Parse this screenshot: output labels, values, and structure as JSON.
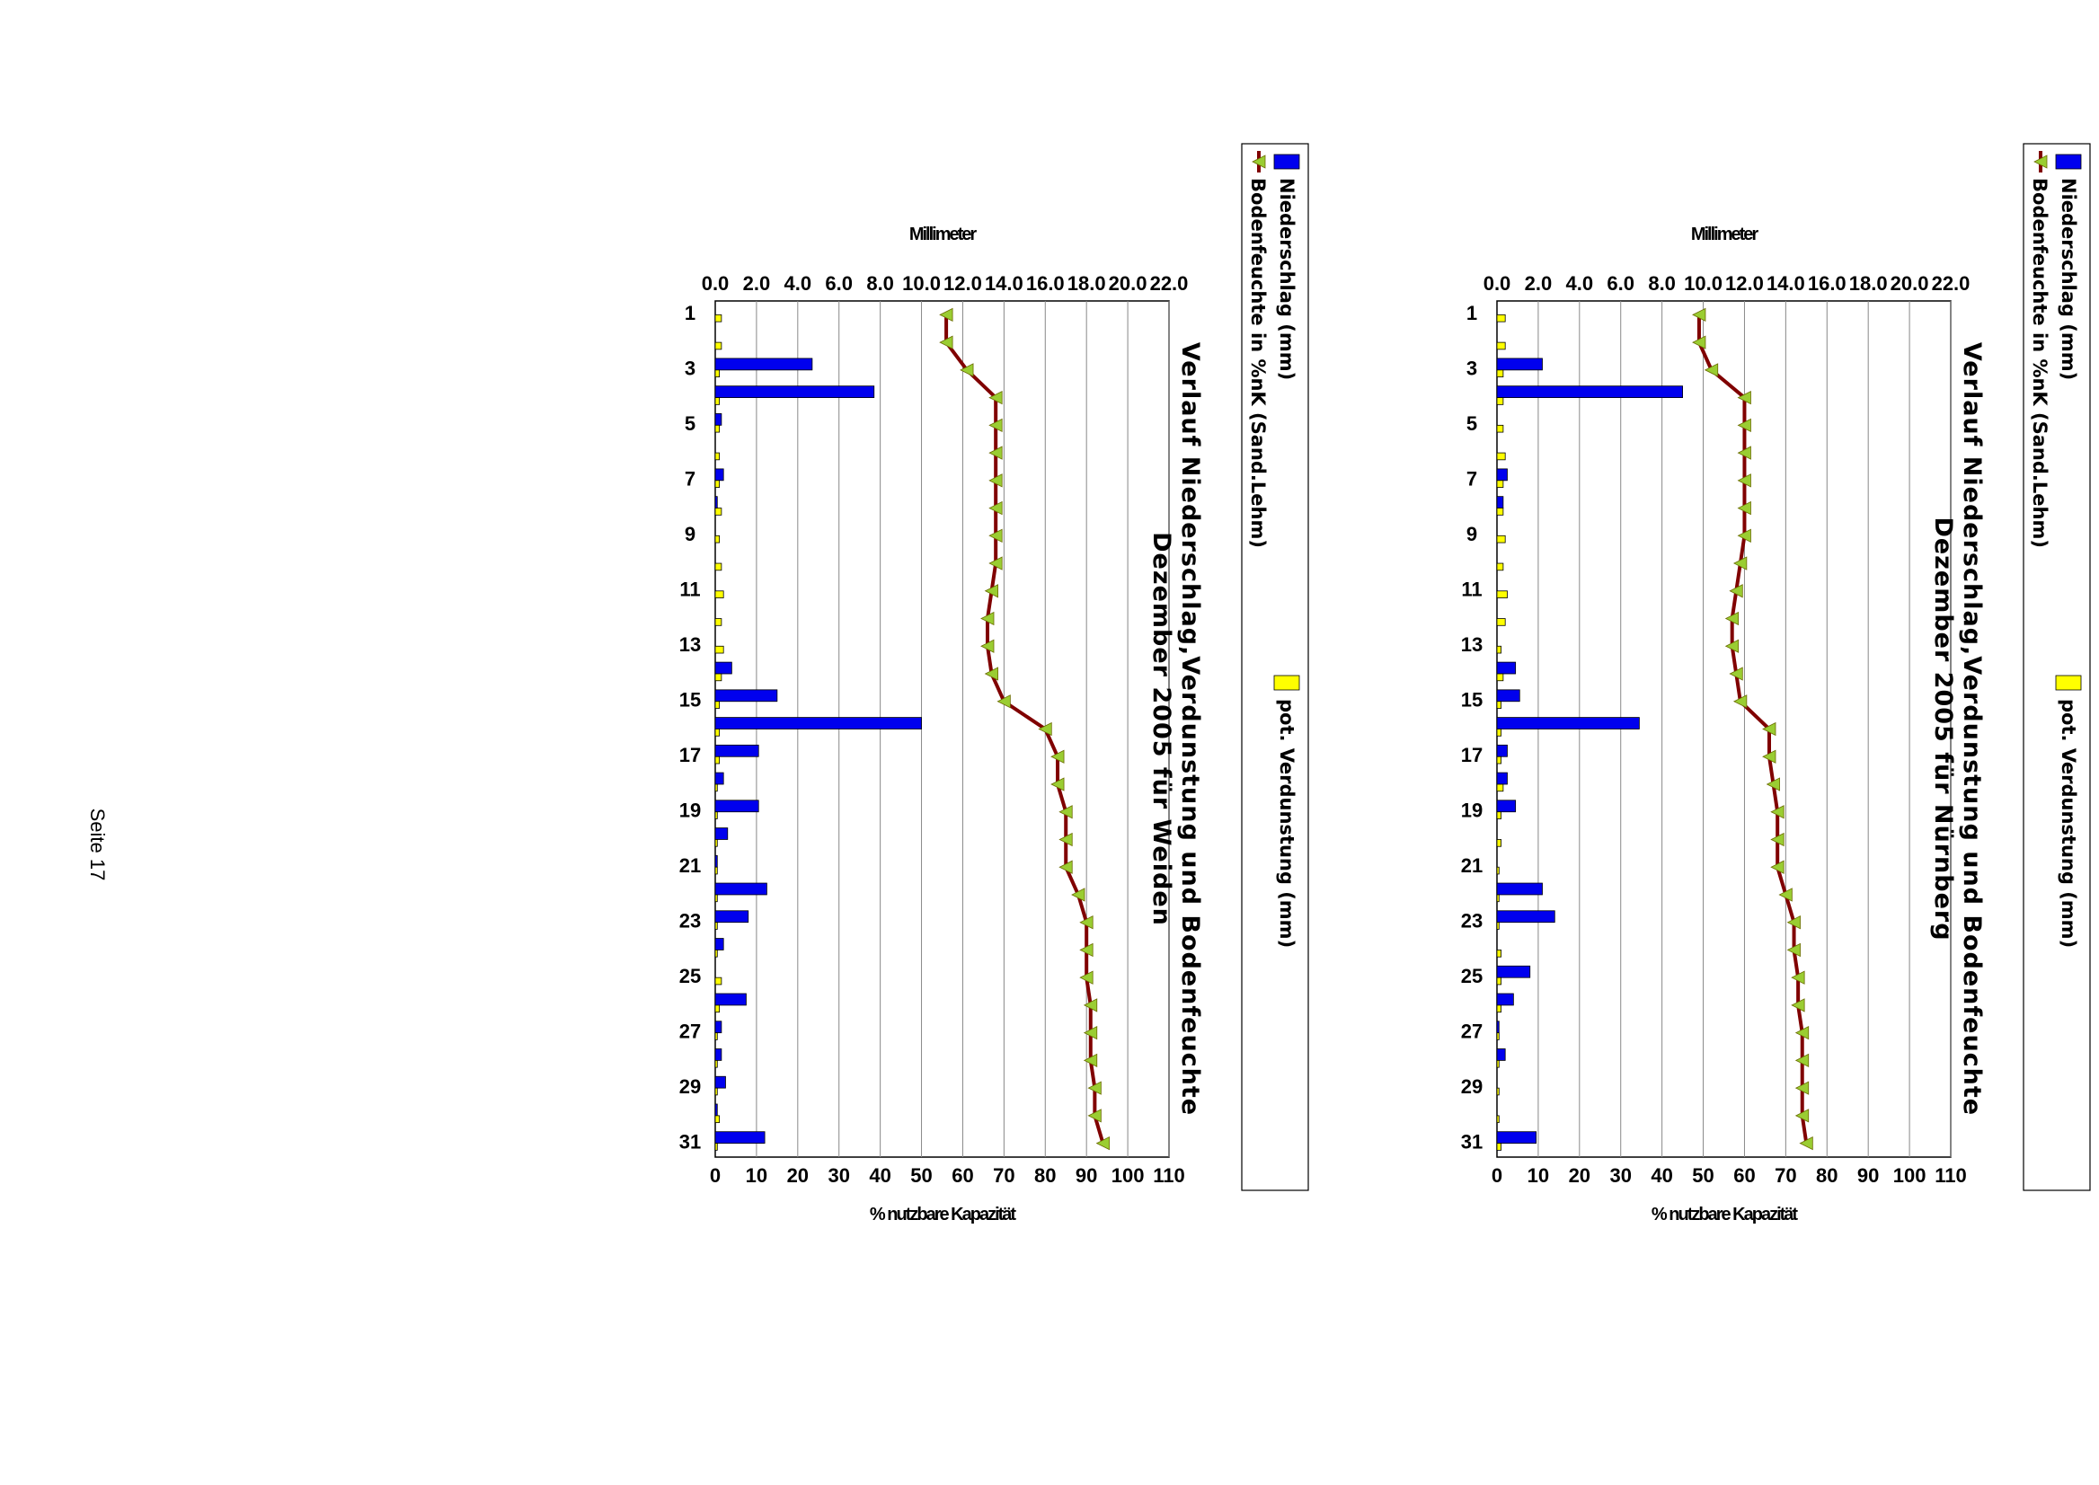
{
  "footer": "Seite 17",
  "chart_data": [
    {
      "type": "bar+line",
      "title": "Verlauf Niederschlag,Verdunstung und Bodenfeuchte",
      "subtitle": "Dezember 2005 für Nürnberg",
      "ylabel_left": "Millimeter",
      "ylabel_right": "% nutzbare Kapazität",
      "ylim_left": [
        0,
        22
      ],
      "ylim_right": [
        0,
        110
      ],
      "yticks_left": [
        "0.0",
        "2.0",
        "4.0",
        "6.0",
        "8.0",
        "10.0",
        "12.0",
        "14.0",
        "16.0",
        "18.0",
        "20.0",
        "22.0"
      ],
      "yticks_right": [
        "0",
        "10",
        "20",
        "30",
        "40",
        "50",
        "60",
        "70",
        "80",
        "90",
        "100",
        "110"
      ],
      "xticks": [
        "1",
        "3",
        "5",
        "7",
        "9",
        "11",
        "13",
        "15",
        "17",
        "19",
        "21",
        "23",
        "25",
        "27",
        "29",
        "31"
      ],
      "x": [
        1,
        2,
        3,
        4,
        5,
        6,
        7,
        8,
        9,
        10,
        11,
        12,
        13,
        14,
        15,
        16,
        17,
        18,
        19,
        20,
        21,
        22,
        23,
        24,
        25,
        26,
        27,
        28,
        29,
        30,
        31
      ],
      "grid": true,
      "legend_position": "bottom",
      "series": [
        {
          "name": "Niederschlag (mm)",
          "type": "bar",
          "color": "#0000ee",
          "values": [
            0,
            0,
            2.2,
            9.0,
            0,
            0,
            0.5,
            0.3,
            0,
            0,
            0,
            0,
            0,
            0.9,
            1.1,
            6.9,
            0.5,
            0.5,
            0.9,
            0,
            0,
            2.2,
            2.8,
            0,
            1.6,
            0.8,
            0.1,
            0.4,
            0,
            0,
            1.9
          ]
        },
        {
          "name": "pot. Verdunstung (mm)",
          "type": "bar",
          "color": "#ffff00",
          "values": [
            0.4,
            0.4,
            0.3,
            0.3,
            0.3,
            0.4,
            0.3,
            0.3,
            0.4,
            0.3,
            0.5,
            0.4,
            0.2,
            0.3,
            0.2,
            0.2,
            0.2,
            0.3,
            0.2,
            0.2,
            0.1,
            0.1,
            0.1,
            0.2,
            0.2,
            0.2,
            0.1,
            0.1,
            0.1,
            0.1,
            0.2
          ]
        },
        {
          "name": "Bodenfeuchte in %nK (Sand.Lehm)",
          "type": "line",
          "color": "#800000",
          "marker_color": "#9acd32",
          "values": [
            49,
            49,
            52,
            60,
            60,
            60,
            60,
            60,
            60,
            59,
            58,
            57,
            57,
            58,
            59,
            66,
            66,
            67,
            68,
            68,
            68,
            70,
            72,
            72,
            73,
            73,
            74,
            74,
            74,
            74,
            75
          ]
        }
      ]
    },
    {
      "type": "bar+line",
      "title": "Verlauf Niederschlag,Verdunstung und Bodenfeuchte",
      "subtitle": "Dezember 2005 für Weiden",
      "ylabel_left": "Millimeter",
      "ylabel_right": "% nutzbare Kapazität",
      "ylim_left": [
        0,
        22
      ],
      "ylim_right": [
        0,
        110
      ],
      "yticks_left": [
        "0.0",
        "2.0",
        "4.0",
        "6.0",
        "8.0",
        "10.0",
        "12.0",
        "14.0",
        "16.0",
        "18.0",
        "20.0",
        "22.0"
      ],
      "yticks_right": [
        "0",
        "10",
        "20",
        "30",
        "40",
        "50",
        "60",
        "70",
        "80",
        "90",
        "100",
        "110"
      ],
      "xticks": [
        "1",
        "3",
        "5",
        "7",
        "9",
        "11",
        "13",
        "15",
        "17",
        "19",
        "21",
        "23",
        "25",
        "27",
        "29",
        "31"
      ],
      "x": [
        1,
        2,
        3,
        4,
        5,
        6,
        7,
        8,
        9,
        10,
        11,
        12,
        13,
        14,
        15,
        16,
        17,
        18,
        19,
        20,
        21,
        22,
        23,
        24,
        25,
        26,
        27,
        28,
        29,
        30,
        31
      ],
      "grid": true,
      "legend_position": "bottom",
      "series": [
        {
          "name": "Niederschlag (mm)",
          "type": "bar",
          "color": "#0000ee",
          "values": [
            0,
            0,
            4.7,
            7.7,
            0.3,
            0,
            0.4,
            0.1,
            0,
            0,
            0,
            0,
            0,
            0.8,
            3.0,
            10.0,
            2.1,
            0.4,
            2.1,
            0.6,
            0.1,
            2.5,
            1.6,
            0.4,
            0,
            1.5,
            0.3,
            0.3,
            0.5,
            0.1,
            2.4
          ]
        },
        {
          "name": "pot. Verdunstung (mm)",
          "type": "bar",
          "color": "#ffff00",
          "values": [
            0.3,
            0.3,
            0.2,
            0.2,
            0.2,
            0.2,
            0.2,
            0.3,
            0.2,
            0.3,
            0.4,
            0.3,
            0.4,
            0.3,
            0.2,
            0.2,
            0.2,
            0.1,
            0.1,
            0.1,
            0.1,
            0.1,
            0.1,
            0.1,
            0.3,
            0.2,
            0.1,
            0.1,
            0.1,
            0.2,
            0.1
          ]
        },
        {
          "name": "Bodenfeuchte in %nK (Sand.Lehm)",
          "type": "line",
          "color": "#800000",
          "marker_color": "#9acd32",
          "values": [
            56,
            56,
            61,
            68,
            68,
            68,
            68,
            68,
            68,
            68,
            67,
            66,
            66,
            67,
            70,
            80,
            83,
            83,
            85,
            85,
            85,
            88,
            90,
            90,
            90,
            91,
            91,
            91,
            92,
            92,
            94
          ]
        }
      ]
    }
  ]
}
